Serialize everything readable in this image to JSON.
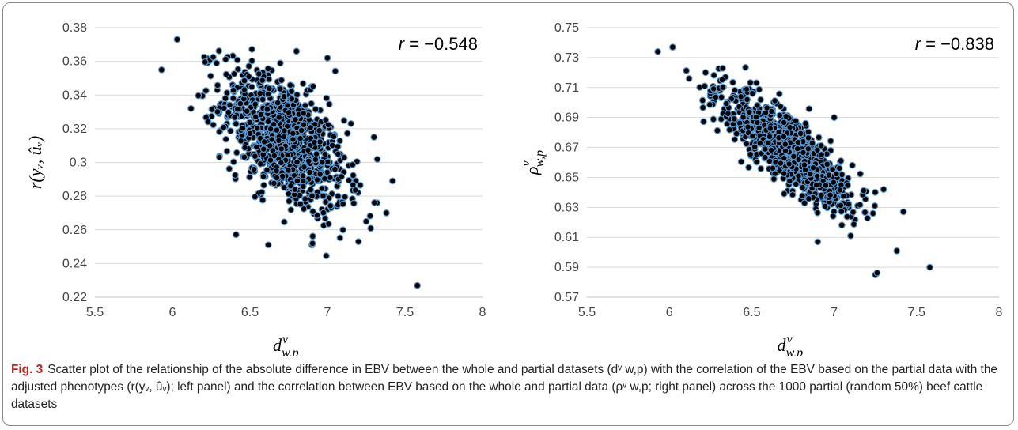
{
  "caption": {
    "label": "Fig. 3",
    "text": "Scatter plot of the relationship of the absolute difference in EBV between the whole and partial datasets (dᵛ w,p) with the correlation of the EBV based on the partial data with the adjusted phenotypes (r(yᵥ, ûᵥ); left panel) and the correlation between EBV based on the whole and partial data (ρᵛ w,p; right panel) across the 1000 partial (random 50%) beef cattle datasets"
  },
  "colors": {
    "marker_fill": "#000000",
    "marker_edge": "#5b9bd5",
    "grid": "#d9d9d9"
  },
  "chart_data": [
    {
      "type": "scatter",
      "panel": "left",
      "xlabel": "d^v_{w,p}",
      "ylabel": "r(y_v, û_v)",
      "annotation": "r = −0.548",
      "correlation": -0.548,
      "xlim": [
        5.5,
        8
      ],
      "ylim": [
        0.22,
        0.38
      ],
      "xticks": [
        "5.5",
        "6",
        "6.5",
        "7",
        "7.5",
        "8"
      ],
      "yticks": [
        "0.22",
        "0.24",
        "0.26",
        "0.28",
        "0.3",
        "0.32",
        "0.34",
        "0.36",
        "0.38"
      ],
      "n_points": 1000,
      "grid": "horizontal",
      "x_mean": 6.72,
      "x_sd": 0.2,
      "y_mean": 0.313,
      "y_sd": 0.021,
      "points": [
        [
          5.93,
          0.355
        ],
        [
          6.03,
          0.373
        ],
        [
          7.58,
          0.227
        ],
        [
          6.9,
          0.251
        ],
        [
          7.42,
          0.289
        ],
        [
          7.38,
          0.27
        ],
        [
          7.3,
          0.315
        ],
        [
          7.0,
          0.362
        ],
        [
          6.8,
          0.366
        ],
        [
          6.22,
          0.362
        ],
        [
          6.12,
          0.332
        ],
        [
          7.25,
          0.265
        ],
        [
          7.2,
          0.253
        ],
        [
          7.1,
          0.26
        ]
      ]
    },
    {
      "type": "scatter",
      "panel": "right",
      "xlabel": "d^v_{w,p}",
      "ylabel": "ρ^v_{w,p}",
      "annotation": "r = −0.838",
      "correlation": -0.838,
      "xlim": [
        5.5,
        8
      ],
      "ylim": [
        0.57,
        0.75
      ],
      "xticks": [
        "5.5",
        "6",
        "6.5",
        "7",
        "7.5",
        "8"
      ],
      "yticks": [
        "0.57",
        "0.59",
        "0.61",
        "0.63",
        "0.65",
        "0.67",
        "0.69",
        "0.71",
        "0.73",
        "0.75"
      ],
      "n_points": 1000,
      "grid": "horizontal",
      "x_mean": 6.72,
      "x_sd": 0.2,
      "y_mean": 0.668,
      "y_sd": 0.02,
      "points": [
        [
          5.93,
          0.734
        ],
        [
          6.02,
          0.737
        ],
        [
          7.58,
          0.59
        ],
        [
          7.38,
          0.601
        ],
        [
          7.42,
          0.627
        ],
        [
          7.25,
          0.585
        ],
        [
          7.3,
          0.642
        ],
        [
          6.9,
          0.607
        ],
        [
          7.0,
          0.69
        ],
        [
          7.1,
          0.611
        ],
        [
          6.12,
          0.716
        ],
        [
          6.22,
          0.72
        ]
      ]
    }
  ]
}
